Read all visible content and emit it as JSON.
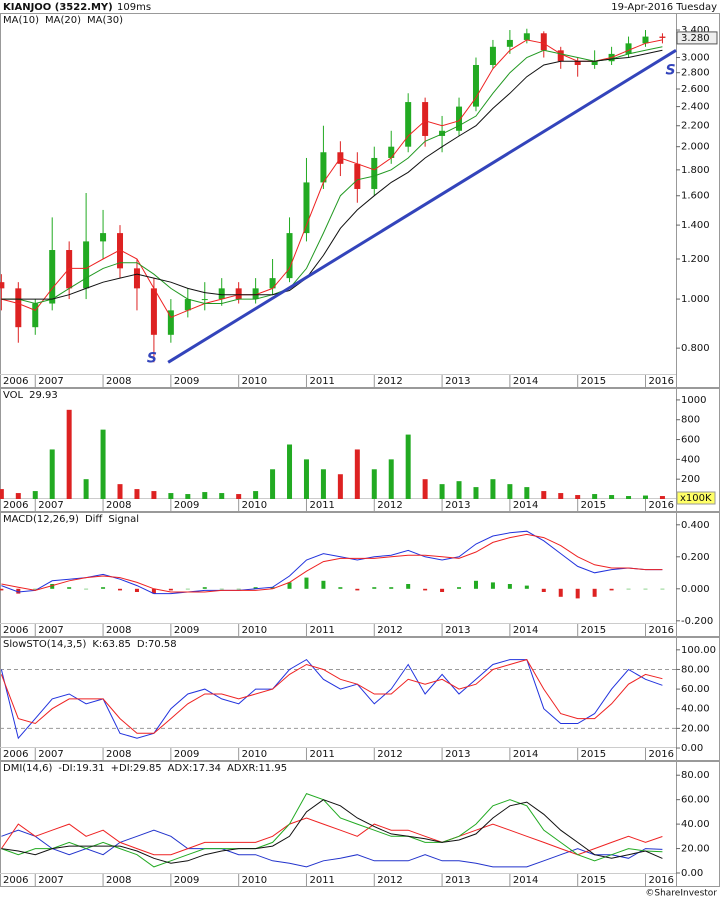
{
  "header": {
    "symbol": "KIANJOO (3522.MY)",
    "timing": "109ms",
    "date": "19-Apr-2016 Tuesday"
  },
  "chart_data": [
    {
      "type": "candlestick",
      "x": [
        2006.5,
        2006.75,
        2007,
        2007.25,
        2007.5,
        2007.75,
        2008,
        2008.25,
        2008.5,
        2008.75,
        2009,
        2009.25,
        2009.5,
        2009.75,
        2010,
        2010.25,
        2010.5,
        2010.75,
        2011,
        2011.25,
        2011.5,
        2011.75,
        2012,
        2012.25,
        2012.5,
        2012.75,
        2013,
        2013.25,
        2013.5,
        2013.75,
        2014,
        2014.25,
        2014.5,
        2014.75,
        2015,
        2015.25,
        2015.5,
        2015.75,
        2016,
        2016.25
      ],
      "open": [
        1.08,
        1.05,
        0.88,
        0.98,
        1.25,
        1.05,
        1.3,
        1.35,
        1.15,
        1.05,
        0.85,
        0.95,
        1.0,
        1.0,
        1.05,
        1.0,
        1.05,
        1.1,
        1.35,
        1.7,
        1.95,
        1.85,
        1.65,
        1.9,
        2.0,
        2.45,
        2.1,
        2.15,
        2.4,
        2.9,
        3.15,
        3.25,
        3.35,
        3.1,
        2.95,
        2.9,
        2.95,
        3.05,
        3.2,
        3.3
      ],
      "high": [
        1.12,
        1.08,
        1.0,
        1.45,
        1.3,
        1.62,
        1.5,
        1.4,
        1.2,
        1.1,
        1.0,
        1.05,
        1.08,
        1.1,
        1.08,
        1.1,
        1.2,
        1.45,
        1.9,
        2.2,
        2.05,
        1.95,
        2.0,
        2.15,
        2.55,
        2.5,
        2.3,
        2.5,
        3.0,
        3.25,
        3.4,
        3.42,
        3.38,
        3.15,
        3.0,
        3.1,
        3.15,
        3.3,
        3.4,
        3.35
      ],
      "low": [
        0.95,
        0.82,
        0.85,
        0.95,
        1.0,
        1.0,
        1.2,
        1.1,
        0.95,
        0.75,
        0.82,
        0.92,
        0.95,
        0.97,
        0.98,
        0.98,
        1.02,
        1.08,
        1.3,
        1.65,
        1.75,
        1.55,
        1.6,
        1.85,
        1.95,
        2.0,
        1.95,
        2.1,
        2.35,
        2.85,
        3.05,
        3.2,
        3.0,
        2.85,
        2.75,
        2.85,
        2.9,
        3.0,
        3.15,
        3.2
      ],
      "close": [
        1.05,
        0.88,
        0.98,
        1.25,
        1.05,
        1.3,
        1.35,
        1.15,
        1.05,
        0.85,
        0.95,
        1.0,
        1.0,
        1.05,
        1.0,
        1.05,
        1.1,
        1.35,
        1.7,
        1.95,
        1.85,
        1.65,
        1.9,
        2.0,
        2.45,
        2.1,
        2.15,
        2.4,
        2.9,
        3.15,
        3.25,
        3.35,
        3.1,
        2.95,
        2.9,
        2.95,
        3.05,
        3.2,
        3.3,
        3.28
      ],
      "up_color": "#22aa22",
      "down_color": "#dd2222",
      "series": [
        {
          "name": "MA(10)",
          "color": "#ee2222",
          "values": [
            1.0,
            0.98,
            0.95,
            1.05,
            1.15,
            1.15,
            1.2,
            1.25,
            1.2,
            1.05,
            0.92,
            0.95,
            0.98,
            1.0,
            1.02,
            1.02,
            1.05,
            1.15,
            1.4,
            1.7,
            1.9,
            1.85,
            1.8,
            1.9,
            2.1,
            2.25,
            2.2,
            2.25,
            2.5,
            2.85,
            3.1,
            3.25,
            3.2,
            3.05,
            2.95,
            2.95,
            3.0,
            3.1,
            3.2,
            3.25
          ]
        },
        {
          "name": "MA(20)",
          "color": "#229922",
          "values": [
            1.0,
            1.0,
            0.98,
            1.0,
            1.05,
            1.1,
            1.15,
            1.18,
            1.18,
            1.12,
            1.05,
            1.0,
            0.98,
            0.98,
            1.0,
            1.0,
            1.02,
            1.05,
            1.15,
            1.35,
            1.6,
            1.72,
            1.75,
            1.8,
            1.9,
            2.05,
            2.12,
            2.2,
            2.3,
            2.55,
            2.8,
            3.0,
            3.1,
            3.05,
            3.0,
            2.95,
            2.98,
            3.05,
            3.1,
            3.15
          ]
        },
        {
          "name": "MA(30)",
          "color": "#111111",
          "values": [
            1.0,
            1.0,
            1.0,
            1.0,
            1.02,
            1.05,
            1.08,
            1.1,
            1.12,
            1.1,
            1.08,
            1.05,
            1.03,
            1.02,
            1.02,
            1.02,
            1.02,
            1.04,
            1.1,
            1.22,
            1.38,
            1.5,
            1.6,
            1.7,
            1.78,
            1.9,
            2.0,
            2.1,
            2.2,
            2.38,
            2.55,
            2.75,
            2.9,
            2.95,
            2.95,
            2.95,
            2.98,
            3.0,
            3.05,
            3.1
          ]
        }
      ],
      "log": true,
      "ylim": [
        0.708,
        3.657
      ],
      "yticks": [
        {
          "value": 0.8,
          "label": "0.800"
        },
        {
          "value": 1.0,
          "label": "1.000"
        },
        {
          "value": 1.2,
          "label": "1.200"
        },
        {
          "value": 1.4,
          "label": "1.400"
        },
        {
          "value": 1.6,
          "label": "1.600"
        },
        {
          "value": 1.8,
          "label": "1.800"
        },
        {
          "value": 2.0,
          "label": "2.000"
        },
        {
          "value": 2.2,
          "label": "2.200"
        },
        {
          "value": 2.4,
          "label": "2.400"
        },
        {
          "value": 2.6,
          "label": "2.600"
        },
        {
          "value": 2.8,
          "label": "2.800"
        },
        {
          "value": 3.0,
          "label": "3.000"
        },
        {
          "value": 3.4,
          "label": "3.400"
        }
      ],
      "xlim": [
        2006.48,
        2016.45
      ],
      "xticks": [
        2006,
        2007,
        2008,
        2009,
        2010,
        2011,
        2012,
        2013,
        2014,
        2015,
        2016
      ],
      "last_price": {
        "value": 3.28,
        "label": "3.280"
      },
      "trendline": {
        "x": [
          2008.96,
          2016.45
        ],
        "y": [
          0.75,
          3.1
        ],
        "color": "#3344bb"
      },
      "annotations": [
        {
          "text": "S",
          "x": 2008.72,
          "y": 0.764
        },
        {
          "text": "S",
          "x": 2016.37,
          "y": 2.83
        }
      ]
    },
    {
      "type": "bar",
      "title": "VOL",
      "values": [
        100,
        60,
        80,
        500,
        900,
        200,
        700,
        150,
        100,
        80,
        60,
        50,
        70,
        60,
        50,
        80,
        300,
        550,
        400,
        300,
        250,
        500,
        300,
        400,
        650,
        200,
        150,
        180,
        120,
        200,
        150,
        120,
        80,
        60,
        40,
        50,
        40,
        30,
        35,
        29.93
      ],
      "unit_label": "x100K",
      "ylim": [
        0,
        1100
      ],
      "yticks": [
        200,
        400,
        600,
        800,
        1000
      ],
      "xlim": [
        2006.48,
        2016.45
      ],
      "xticks": [
        2006,
        2007,
        2008,
        2009,
        2010,
        2011,
        2012,
        2013,
        2014,
        2015,
        2016
      ]
    },
    {
      "type": "line",
      "title": "MACD(12,26,9)",
      "series": [
        {
          "name": "Diff",
          "color": "#2233dd",
          "values": [
            0.02,
            -0.02,
            -0.01,
            0.05,
            0.06,
            0.07,
            0.09,
            0.06,
            0.02,
            -0.03,
            -0.03,
            -0.02,
            -0.01,
            -0.01,
            -0.01,
            0.0,
            0.01,
            0.08,
            0.18,
            0.22,
            0.2,
            0.18,
            0.2,
            0.21,
            0.24,
            0.2,
            0.18,
            0.2,
            0.28,
            0.33,
            0.35,
            0.36,
            0.3,
            0.22,
            0.14,
            0.1,
            0.12,
            0.13,
            0.12,
            0.12
          ]
        },
        {
          "name": "Signal",
          "color": "#ee2222",
          "values": [
            0.03,
            0.01,
            -0.01,
            0.02,
            0.05,
            0.07,
            0.08,
            0.07,
            0.04,
            0.0,
            -0.02,
            -0.02,
            -0.02,
            -0.01,
            -0.01,
            -0.01,
            0.0,
            0.04,
            0.11,
            0.17,
            0.19,
            0.19,
            0.19,
            0.2,
            0.21,
            0.21,
            0.2,
            0.19,
            0.23,
            0.29,
            0.32,
            0.34,
            0.32,
            0.27,
            0.2,
            0.15,
            0.13,
            0.13,
            0.12,
            0.12
          ]
        }
      ],
      "histogram": {
        "values": [
          -0.01,
          -0.03,
          0,
          0.03,
          0.01,
          0,
          0.01,
          -0.01,
          -0.02,
          -0.03,
          -0.01,
          0,
          0.01,
          0,
          0,
          0.01,
          0.01,
          0.04,
          0.07,
          0.05,
          0.01,
          -0.01,
          0.01,
          0.01,
          0.03,
          -0.01,
          -0.02,
          0.01,
          0.05,
          0.04,
          0.03,
          0.02,
          -0.02,
          -0.05,
          -0.06,
          -0.05,
          -0.01,
          0,
          0,
          0
        ],
        "up_color": "#22aa22",
        "down_color": "#dd2222"
      },
      "ylim": [
        -0.22,
        0.48
      ],
      "yticks": [
        {
          "value": -0.2,
          "label": "-0.200"
        },
        {
          "value": 0,
          "label": "0.000"
        },
        {
          "value": 0.2,
          "label": "0.200"
        },
        {
          "value": 0.4,
          "label": "0.400"
        }
      ],
      "xlim": [
        2006.48,
        2016.45
      ],
      "xticks": [
        2006,
        2007,
        2008,
        2009,
        2010,
        2011,
        2012,
        2013,
        2014,
        2015,
        2016
      ]
    },
    {
      "type": "line",
      "title": "SlowSTO(14,3,5)",
      "series": [
        {
          "name": "K:63.85",
          "color": "#2233dd",
          "values": [
            80,
            10,
            30,
            50,
            55,
            45,
            50,
            15,
            10,
            15,
            40,
            55,
            60,
            50,
            45,
            60,
            60,
            80,
            90,
            70,
            60,
            65,
            45,
            60,
            85,
            55,
            75,
            55,
            70,
            85,
            90,
            90,
            40,
            25,
            25,
            35,
            60,
            80,
            70,
            63.85
          ]
        },
        {
          "name": "D:70.58",
          "color": "#ee2222",
          "values": [
            75,
            30,
            25,
            40,
            50,
            50,
            50,
            30,
            15,
            15,
            30,
            45,
            55,
            55,
            50,
            55,
            60,
            75,
            85,
            80,
            70,
            65,
            55,
            55,
            70,
            65,
            70,
            60,
            65,
            80,
            85,
            90,
            60,
            35,
            30,
            30,
            45,
            65,
            75,
            70.58
          ]
        }
      ],
      "reference_lines": [
        20,
        80
      ],
      "ylim": [
        -1,
        110
      ],
      "yticks": [
        {
          "value": 0,
          "label": "0.00"
        },
        {
          "value": 20,
          "label": "20.00"
        },
        {
          "value": 40,
          "label": "40.00"
        },
        {
          "value": 60,
          "label": "60.00"
        },
        {
          "value": 80,
          "label": "80.00"
        },
        {
          "value": 100,
          "label": "100.00"
        }
      ],
      "xlim": [
        2006.48,
        2016.45
      ],
      "xticks": [
        2006,
        2007,
        2008,
        2009,
        2010,
        2011,
        2012,
        2013,
        2014,
        2015,
        2016
      ]
    },
    {
      "type": "line",
      "title": "DMI(14,6)",
      "series": [
        {
          "name": "-DI:19.31",
          "color": "#2233cc",
          "values": [
            30,
            35,
            30,
            20,
            15,
            20,
            15,
            25,
            30,
            35,
            30,
            20,
            20,
            20,
            15,
            15,
            10,
            8,
            5,
            10,
            12,
            15,
            10,
            10,
            10,
            15,
            10,
            10,
            8,
            5,
            5,
            5,
            10,
            15,
            20,
            15,
            15,
            12,
            20,
            19.31
          ]
        },
        {
          "name": "+DI:29.85",
          "color": "#ee2222",
          "values": [
            20,
            40,
            30,
            35,
            40,
            30,
            35,
            25,
            20,
            15,
            15,
            20,
            25,
            25,
            25,
            25,
            30,
            40,
            45,
            40,
            35,
            30,
            40,
            35,
            35,
            30,
            25,
            30,
            35,
            40,
            35,
            30,
            25,
            20,
            15,
            20,
            25,
            30,
            25,
            29.85
          ]
        },
        {
          "name": "ADX:17.34",
          "color": "#22aa22",
          "values": [
            20,
            15,
            20,
            20,
            25,
            20,
            25,
            20,
            15,
            5,
            10,
            15,
            20,
            20,
            20,
            20,
            25,
            40,
            65,
            60,
            45,
            40,
            35,
            30,
            30,
            25,
            25,
            30,
            40,
            55,
            60,
            55,
            35,
            25,
            15,
            10,
            15,
            20,
            18,
            17.34
          ]
        },
        {
          "name": "ADXR:11.95",
          "color": "#111111",
          "values": [
            20,
            18,
            15,
            20,
            22,
            22,
            22,
            22,
            18,
            12,
            8,
            10,
            15,
            18,
            20,
            20,
            22,
            30,
            50,
            60,
            55,
            45,
            38,
            32,
            30,
            28,
            25,
            27,
            32,
            45,
            55,
            58,
            48,
            35,
            25,
            15,
            12,
            15,
            18,
            11.95
          ]
        }
      ],
      "ylim": [
        0,
        90
      ],
      "yticks": [
        {
          "value": 0,
          "label": "0.00"
        },
        {
          "value": 20,
          "label": "20.00"
        },
        {
          "value": 40,
          "label": "40.00"
        },
        {
          "value": 60,
          "label": "60.00"
        },
        {
          "value": 80,
          "label": "80.00"
        }
      ],
      "xlim": [
        2006.48,
        2016.45
      ],
      "xticks": [
        2006,
        2007,
        2008,
        2009,
        2010,
        2011,
        2012,
        2013,
        2014,
        2015,
        2016
      ]
    }
  ],
  "footer": {
    "credit": "©ShareInvestor"
  }
}
